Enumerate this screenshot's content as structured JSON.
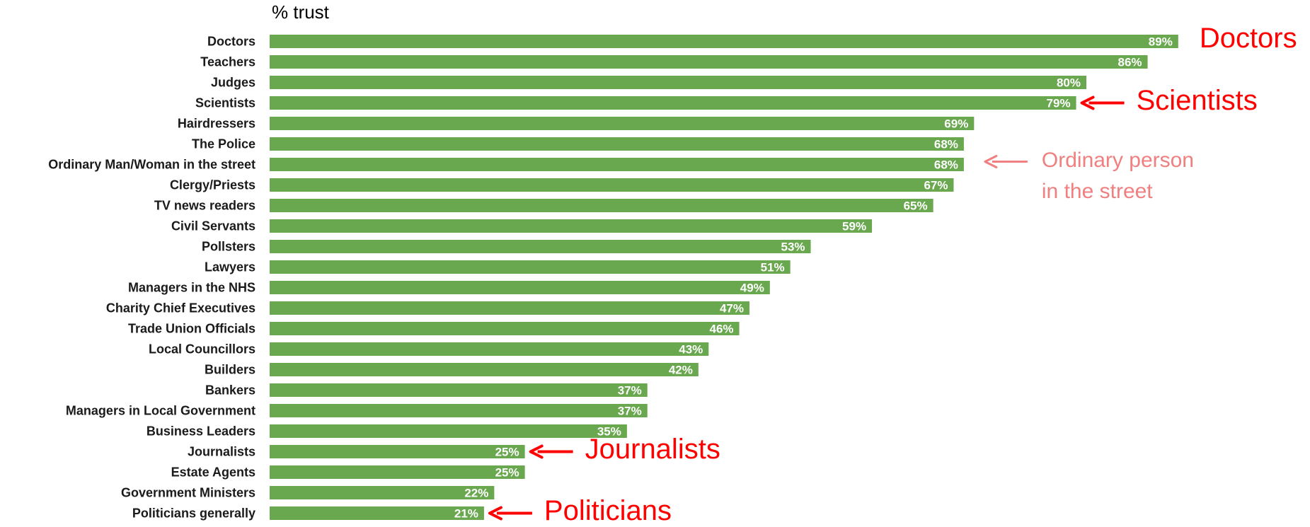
{
  "chart_data": {
    "type": "bar",
    "orientation": "horizontal",
    "unit_label": "% trust",
    "categories": [
      "Doctors",
      "Teachers",
      "Judges",
      "Scientists",
      "Hairdressers",
      "The Police",
      "Ordinary Man/Woman in the street",
      "Clergy/Priests",
      "TV news readers",
      "Civil Servants",
      "Pollsters",
      "Lawyers",
      "Managers in the NHS",
      "Charity Chief Executives",
      "Trade Union Officials",
      "Local Councillors",
      "Builders",
      "Bankers",
      "Managers in Local Government",
      "Business Leaders",
      "Journalists",
      "Estate Agents",
      "Government Ministers",
      "Politicians generally"
    ],
    "values": [
      89,
      86,
      80,
      79,
      69,
      68,
      68,
      67,
      65,
      59,
      53,
      51,
      49,
      47,
      46,
      43,
      42,
      37,
      37,
      35,
      25,
      25,
      22,
      21
    ],
    "value_labels": [
      "89%",
      "86%",
      "80%",
      "79%",
      "69%",
      "68%",
      "68%",
      "67%",
      "65%",
      "59%",
      "53%",
      "51%",
      "49%",
      "47%",
      "46%",
      "43%",
      "42%",
      "37%",
      "37%",
      "35%",
      "25%",
      "25%",
      "22%",
      "21%"
    ],
    "xlim": [
      0,
      100
    ],
    "grid": false,
    "bar_color": "#6aa84f",
    "annotations": [
      {
        "text": "Doctors",
        "target": "Doctors",
        "arrow": false,
        "color": "#ff0000",
        "style": "big"
      },
      {
        "text": "Scientists",
        "target": "Scientists",
        "arrow": true,
        "color": "#ff0000",
        "style": "big"
      },
      {
        "text": "Ordinary person",
        "text2": "in the street",
        "target": "Ordinary Man/Woman in the street",
        "arrow": true,
        "color": "#f08080",
        "style": "small"
      },
      {
        "text": "Journalists",
        "target": "Journalists",
        "arrow": true,
        "color": "#ff0000",
        "style": "big"
      },
      {
        "text": "Politicians",
        "target": "Politicians generally",
        "arrow": true,
        "color": "#ff0000",
        "style": "big"
      }
    ]
  }
}
